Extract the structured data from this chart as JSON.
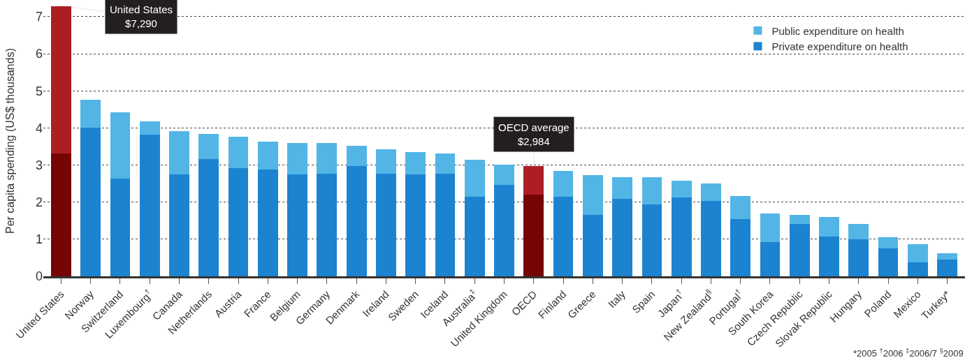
{
  "chart_data": {
    "type": "bar",
    "stacked": true,
    "ylabel": "Per capita spending (US$ thousands)",
    "categories": [
      "United States",
      "Norway",
      "Switzerland",
      "Luxembourg$^{†}$",
      "Canada",
      "Netherlands",
      "Austria",
      "France",
      "Belgium",
      "Germany",
      "Denmark",
      "Ireland",
      "Sweden",
      "Iceland",
      "Australia$^{‡}$",
      "United Kingdom",
      "OECD",
      "Finland",
      "Greece",
      "Italy",
      "Spain",
      "Japan$^{†}$",
      "New Zealand$^{§}$",
      "Portugal$^{†}$",
      "South Korea",
      "Czech Republic",
      "Slovak Republic",
      "Hungary",
      "Poland",
      "Mexico",
      "Turkey*"
    ],
    "series": [
      {
        "name": "Private expenditure on health",
        "color": "#1c83d1",
        "colors": [
          "#760405",
          "#1c83d1",
          "#1c83d1",
          "#1c83d1",
          "#1c83d1",
          "#1c83d1",
          "#1c83d1",
          "#1c83d1",
          "#1c83d1",
          "#1c83d1",
          "#1c83d1",
          "#1c83d1",
          "#1c83d1",
          "#1c83d1",
          "#1c83d1",
          "#1c83d1",
          "#760405",
          "#1c83d1",
          "#1c83d1",
          "#1c83d1",
          "#1c83d1",
          "#1c83d1",
          "#1c83d1",
          "#1c83d1",
          "#1c83d1",
          "#1c83d1",
          "#1c83d1",
          "#1c83d1",
          "#1c83d1",
          "#1c83d1",
          "#1c83d1"
        ],
        "values": [
          3.31,
          4.01,
          2.63,
          3.82,
          2.74,
          3.16,
          2.91,
          2.87,
          2.74,
          2.76,
          2.97,
          2.76,
          2.74,
          2.76,
          2.14,
          2.46,
          2.21,
          2.14,
          1.66,
          2.08,
          1.93,
          2.12,
          2.04,
          1.55,
          0.93,
          1.42,
          1.08,
          1.0,
          0.76,
          0.38,
          0.45
        ]
      },
      {
        "name": "Public expenditure on health",
        "color": "#52b5e6",
        "colors": [
          "#ad1e23",
          "#52b5e6",
          "#52b5e6",
          "#52b5e6",
          "#52b5e6",
          "#52b5e6",
          "#52b5e6",
          "#52b5e6",
          "#52b5e6",
          "#52b5e6",
          "#52b5e6",
          "#52b5e6",
          "#52b5e6",
          "#52b5e6",
          "#52b5e6",
          "#52b5e6",
          "#ad1e23",
          "#52b5e6",
          "#52b5e6",
          "#52b5e6",
          "#52b5e6",
          "#52b5e6",
          "#52b5e6",
          "#52b5e6",
          "#52b5e6",
          "#52b5e6",
          "#52b5e6",
          "#52b5e6",
          "#52b5e6",
          "#52b5e6",
          "#52b5e6"
        ],
        "values": [
          3.98,
          0.75,
          1.79,
          0.36,
          1.17,
          0.68,
          0.85,
          0.76,
          0.85,
          0.83,
          0.55,
          0.66,
          0.61,
          0.55,
          1.0,
          0.55,
          0.77,
          0.71,
          1.06,
          0.6,
          0.75,
          0.45,
          0.47,
          0.62,
          0.77,
          0.24,
          0.51,
          0.42,
          0.3,
          0.49,
          0.17
        ]
      }
    ],
    "ylim": [
      0,
      7.3
    ],
    "yticks": [
      0,
      1,
      2,
      3,
      4,
      5,
      6,
      7
    ],
    "grid": "y",
    "legend": "top right",
    "annotations": [
      {
        "text": "United States\n$7,290",
        "x": "United States",
        "y": 7.29
      },
      {
        "text": "OECD average\n$2,984",
        "x": "OECD",
        "y": 2.984
      },
      "*2005 $^{†}$2006 $^{‡}$2006/7 $^{§}$2009"
    ]
  }
}
